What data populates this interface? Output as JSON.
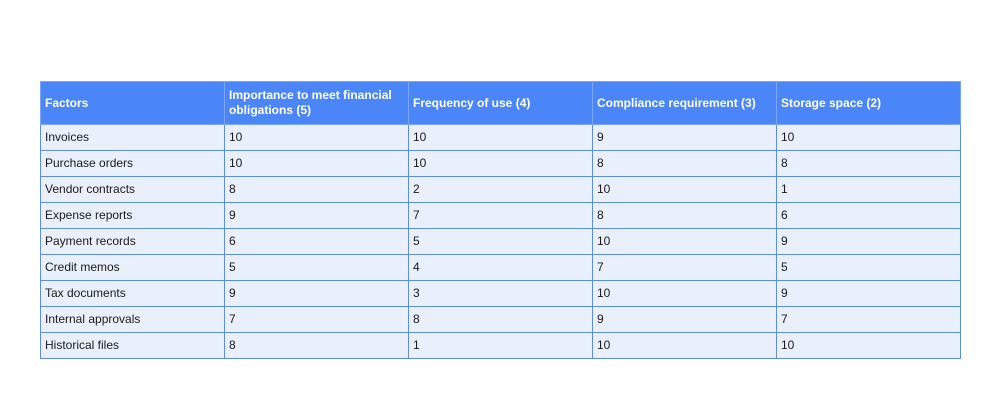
{
  "table": {
    "headers": [
      "Factors",
      "Importance to meet financial obligations (5)",
      "Frequency of use (4)",
      "Compliance requirement (3)",
      "Storage space (2)"
    ],
    "rows": [
      [
        "Invoices",
        "10",
        "10",
        "9",
        "10"
      ],
      [
        "Purchase orders",
        "10",
        "10",
        "8",
        "8"
      ],
      [
        "Vendor contracts",
        "8",
        "2",
        "10",
        "1"
      ],
      [
        "Expense reports",
        "9",
        "7",
        "8",
        "6"
      ],
      [
        "Payment records",
        "6",
        "5",
        "10",
        "9"
      ],
      [
        "Credit memos",
        "5",
        "4",
        "7",
        "5"
      ],
      [
        "Tax documents",
        "9",
        "3",
        "10",
        "9"
      ],
      [
        "Internal approvals",
        "7",
        "8",
        "9",
        "7"
      ],
      [
        "Historical files",
        "8",
        "1",
        "10",
        "10"
      ]
    ]
  },
  "colors": {
    "header_bg": "#4a86f7",
    "header_text": "#ffffff",
    "row_bg": "#e9f0fc",
    "border": "#5b8fd6"
  }
}
